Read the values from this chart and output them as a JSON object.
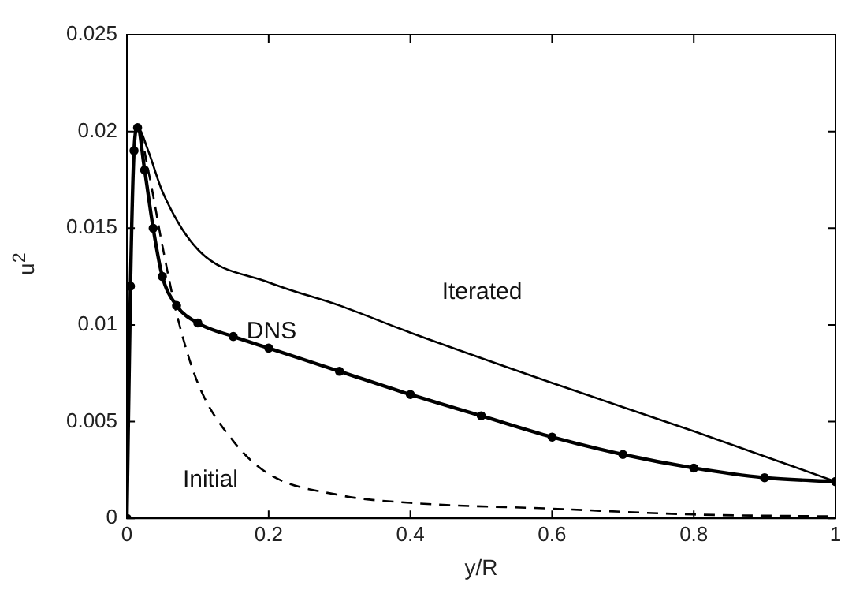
{
  "chart_data": {
    "type": "line",
    "xlabel": "y/R",
    "ylabel": "u$^{2}$",
    "xlim": [
      0,
      1
    ],
    "ylim": [
      0,
      0.025
    ],
    "xticks": [
      0,
      0.2,
      0.4,
      0.6,
      0.8,
      1
    ],
    "yticks": [
      0,
      0.005,
      0.01,
      0.015,
      0.02,
      0.025
    ],
    "grid": false,
    "legend": false,
    "series": [
      {
        "name": "Iterated",
        "color": "#000000",
        "line_style": "solid",
        "marker": "none",
        "x": [
          0,
          0.005,
          0.01,
          0.015,
          0.03,
          0.05,
          0.1,
          0.2,
          0.3,
          0.4,
          0.6,
          0.8,
          1
        ],
        "values": [
          0,
          0.012,
          0.019,
          0.0202,
          0.019,
          0.0169,
          0.0139,
          0.0122,
          0.011,
          0.0096,
          0.007,
          0.0045,
          0.0019
        ]
      },
      {
        "name": "DNS",
        "color": "#000000",
        "line_style": "solid",
        "marker": "circle",
        "x": [
          0,
          0.005,
          0.01,
          0.015,
          0.025,
          0.037,
          0.05,
          0.07,
          0.1,
          0.15,
          0.2,
          0.3,
          0.4,
          0.5,
          0.6,
          0.7,
          0.8,
          0.9,
          1
        ],
        "values": [
          0,
          0.012,
          0.019,
          0.0202,
          0.018,
          0.015,
          0.0125,
          0.011,
          0.0101,
          0.0094,
          0.0088,
          0.0076,
          0.0064,
          0.0053,
          0.0042,
          0.0033,
          0.0026,
          0.0021,
          0.0019
        ]
      },
      {
        "name": "Initial",
        "color": "#000000",
        "line_style": "dashed",
        "marker": "none",
        "x": [
          0,
          0.005,
          0.01,
          0.015,
          0.03,
          0.05,
          0.07,
          0.1,
          0.15,
          0.2,
          0.3,
          0.4,
          0.6,
          0.8,
          1
        ],
        "values": [
          0,
          0.012,
          0.019,
          0.0202,
          0.018,
          0.0141,
          0.0106,
          0.007,
          0.004,
          0.0023,
          0.0012,
          0.0008,
          0.0005,
          0.0002,
          0.0001
        ]
      }
    ]
  }
}
